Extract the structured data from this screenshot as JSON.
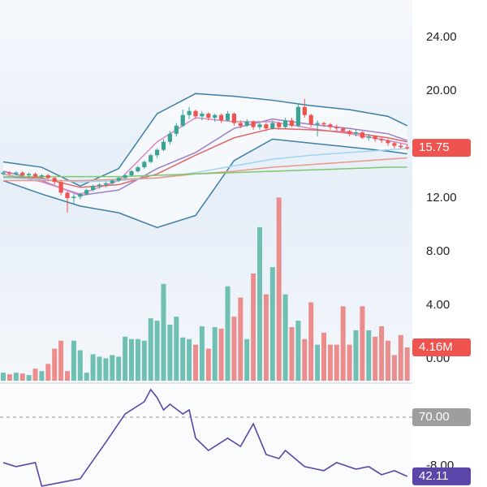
{
  "chart_data": {
    "type": "candlestick",
    "ylim": [
      -9.58,
      26.79
    ],
    "yticks": [
      {
        "value": 24,
        "label": "24.00"
      },
      {
        "value": 20,
        "label": "20.00"
      },
      {
        "value": 12,
        "label": "12.00"
      },
      {
        "value": 8,
        "label": "8.00"
      },
      {
        "value": 4,
        "label": "4.00"
      },
      {
        "value": 0,
        "label": "0.00"
      },
      {
        "value": -8,
        "label": "-8.00"
      }
    ],
    "up_color": "#3aa394",
    "down_color": "#ef5350",
    "candles": [
      [
        13.8,
        14.0,
        13.7,
        13.9
      ],
      [
        13.9,
        14.0,
        13.7,
        13.8
      ],
      [
        13.8,
        14.0,
        13.7,
        13.9
      ],
      [
        13.9,
        14.0,
        13.6,
        13.7
      ],
      [
        13.7,
        13.9,
        13.6,
        13.8
      ],
      [
        13.8,
        13.9,
        13.5,
        13.6
      ],
      [
        13.6,
        13.8,
        13.5,
        13.7
      ],
      [
        13.7,
        13.8,
        13.4,
        13.5
      ],
      [
        13.5,
        13.6,
        13.0,
        13.2
      ],
      [
        13.2,
        13.3,
        12.2,
        12.4
      ],
      [
        12.4,
        12.5,
        10.9,
        12.0
      ],
      [
        12.0,
        12.3,
        11.6,
        12.1
      ],
      [
        12.1,
        12.4,
        11.9,
        12.3
      ],
      [
        12.3,
        12.7,
        12.2,
        12.6
      ],
      [
        12.6,
        13.0,
        12.5,
        12.9
      ],
      [
        12.9,
        13.1,
        12.7,
        13.0
      ],
      [
        13.0,
        13.2,
        12.8,
        13.1
      ],
      [
        13.1,
        13.4,
        13.0,
        13.3
      ],
      [
        13.3,
        13.6,
        13.2,
        13.5
      ],
      [
        13.5,
        13.8,
        13.4,
        13.7
      ],
      [
        13.7,
        14.1,
        13.6,
        14.0
      ],
      [
        14.0,
        14.4,
        13.9,
        14.3
      ],
      [
        14.3,
        14.8,
        14.2,
        14.7
      ],
      [
        14.7,
        15.3,
        14.6,
        15.2
      ],
      [
        15.2,
        15.7,
        15.0,
        15.6
      ],
      [
        15.6,
        16.4,
        15.5,
        16.2
      ],
      [
        16.2,
        17.0,
        16.0,
        16.8
      ],
      [
        16.8,
        17.6,
        16.6,
        17.4
      ],
      [
        17.4,
        18.6,
        17.3,
        18.2
      ],
      [
        18.2,
        18.8,
        17.9,
        18.5
      ],
      [
        18.5,
        18.6,
        17.9,
        18.1
      ],
      [
        18.1,
        18.5,
        17.8,
        18.3
      ],
      [
        18.3,
        18.4,
        17.8,
        18.0
      ],
      [
        18.0,
        18.3,
        17.7,
        18.2
      ],
      [
        18.2,
        18.3,
        17.6,
        17.8
      ],
      [
        17.8,
        18.5,
        17.7,
        18.3
      ],
      [
        18.3,
        18.4,
        17.4,
        17.6
      ],
      [
        17.6,
        17.8,
        17.2,
        17.4
      ],
      [
        17.4,
        17.9,
        17.3,
        17.7
      ],
      [
        17.7,
        17.8,
        17.1,
        17.3
      ],
      [
        17.3,
        17.7,
        17.1,
        17.5
      ],
      [
        17.5,
        17.6,
        17.0,
        17.2
      ],
      [
        17.2,
        17.8,
        17.1,
        17.6
      ],
      [
        17.6,
        17.7,
        17.1,
        17.3
      ],
      [
        17.3,
        18.0,
        17.2,
        17.8
      ],
      [
        17.8,
        18.0,
        17.3,
        17.4
      ],
      [
        17.4,
        19.0,
        17.3,
        18.8
      ],
      [
        18.8,
        19.4,
        18.0,
        18.2
      ],
      [
        18.2,
        18.3,
        17.3,
        17.5
      ],
      [
        17.5,
        17.8,
        16.6,
        17.6
      ],
      [
        17.6,
        17.7,
        17.3,
        17.5
      ],
      [
        17.5,
        17.6,
        17.1,
        17.3
      ],
      [
        17.3,
        17.5,
        17.0,
        17.2
      ],
      [
        17.2,
        17.3,
        16.9,
        17.0
      ],
      [
        17.0,
        17.1,
        16.6,
        16.8
      ],
      [
        16.8,
        17.1,
        16.6,
        16.9
      ],
      [
        16.9,
        17.0,
        16.4,
        16.5
      ],
      [
        16.5,
        16.8,
        16.3,
        16.6
      ],
      [
        16.6,
        16.7,
        16.2,
        16.4
      ],
      [
        16.4,
        16.6,
        16.1,
        16.3
      ],
      [
        16.3,
        16.4,
        15.9,
        16.1
      ],
      [
        16.1,
        16.2,
        15.7,
        15.9
      ],
      [
        15.9,
        16.1,
        15.7,
        15.8
      ],
      [
        15.8,
        16.0,
        15.6,
        15.75
      ]
    ],
    "overlays": [
      {
        "color": "#3d7ea6",
        "x": [
          0,
          6,
          12,
          18,
          24,
          30,
          36,
          42,
          48,
          54,
          60,
          63
        ],
        "values": [
          14.7,
          14.3,
          12.9,
          14.2,
          18.3,
          19.8,
          19.6,
          19.3,
          18.9,
          18.6,
          18.1,
          17.4
        ]
      },
      {
        "color": "#3d7ea6",
        "x": [
          0,
          6,
          12,
          18,
          24,
          30,
          36,
          42,
          48,
          54,
          60,
          63
        ],
        "values": [
          13.3,
          12.3,
          11.4,
          10.9,
          9.8,
          10.7,
          14.8,
          16.4,
          16.1,
          15.8,
          15.5,
          15.3
        ]
      },
      {
        "color": "#9b7fc8",
        "x": [
          0,
          6,
          12,
          18,
          24,
          30,
          36,
          42,
          48,
          54,
          60,
          63
        ],
        "values": [
          14.0,
          13.3,
          12.2,
          12.6,
          14.2,
          15.4,
          17.2,
          17.9,
          17.5,
          17.2,
          16.8,
          16.3
        ]
      },
      {
        "color": "#d98ac4",
        "x": [
          0,
          6,
          12,
          18,
          24,
          30,
          36,
          42,
          48,
          54,
          60,
          63
        ],
        "values": [
          13.8,
          13.2,
          12.3,
          13.3,
          16.2,
          18.0,
          17.7,
          17.7,
          17.2,
          16.8,
          16.3,
          16.0
        ]
      },
      {
        "color": "#e06666",
        "x": [
          0,
          6,
          12,
          18,
          24,
          30,
          36,
          42,
          48,
          54,
          60,
          63
        ],
        "values": [
          13.6,
          13.5,
          12.8,
          13.0,
          13.8,
          15.2,
          16.5,
          17.2,
          17.1,
          16.9,
          16.5,
          16.2
        ]
      },
      {
        "color": "#9fd3ee",
        "x": [
          0,
          6,
          12,
          18,
          24,
          30,
          36,
          42,
          48,
          54,
          60,
          63
        ],
        "values": [
          13.5,
          13.4,
          13.2,
          13.3,
          13.5,
          13.9,
          14.4,
          14.9,
          15.2,
          15.4,
          15.6,
          15.7
        ]
      },
      {
        "color": "#e89a8a",
        "x": [
          0,
          6,
          12,
          18,
          24,
          30,
          36,
          42,
          48,
          54,
          60,
          63
        ],
        "values": [
          13.3,
          13.3,
          13.3,
          13.4,
          13.5,
          13.8,
          14.0,
          14.3,
          14.5,
          14.7,
          14.9,
          15.0
        ]
      },
      {
        "color": "#7cc96b",
        "x": [
          0,
          6,
          12,
          18,
          24,
          30,
          36,
          42,
          48,
          54,
          60,
          63
        ],
        "values": [
          13.6,
          13.6,
          13.6,
          13.6,
          13.7,
          13.8,
          13.9,
          14.0,
          14.1,
          14.2,
          14.3,
          14.3
        ]
      }
    ],
    "volume": {
      "ylim": [
        0,
        47.6
      ],
      "up_color": "#6fbfb2",
      "down_color": "#ec8d8d",
      "values": [
        1.0,
        0.8,
        1.0,
        0.9,
        0.7,
        1.5,
        1.2,
        2.1,
        4.0,
        5.0,
        1.2,
        5.0,
        3.8,
        1.0,
        3.3,
        3.0,
        2.8,
        3.2,
        3.0,
        5.5,
        5.2,
        5.2,
        5.0,
        7.8,
        7.5,
        12.1,
        7.0,
        8.0,
        5.4,
        5.2,
        4.5,
        6.8,
        4.0,
        6.7,
        6.5,
        11.8,
        8.0,
        10.4,
        5.2,
        13.4,
        19.2,
        10.8,
        14.2,
        22.9,
        10.8,
        6.7,
        7.5,
        5.2,
        9.8,
        4.5,
        6.0,
        4.5,
        4.5,
        9.3,
        4.5,
        6.3,
        9.3,
        6.3,
        5.5,
        6.8,
        5.0,
        3.2,
        5.7,
        4.16
      ],
      "value_labels": [
        null,
        null,
        null,
        null,
        null,
        null,
        null,
        null,
        null,
        null,
        null,
        null,
        null,
        null,
        null,
        null,
        null,
        null,
        null,
        null,
        null,
        null,
        null,
        null,
        null,
        null,
        null,
        null,
        null,
        null,
        null,
        null,
        null,
        null,
        null,
        null,
        null,
        null,
        null,
        null,
        null,
        null,
        null,
        null,
        null,
        null,
        null,
        null,
        null,
        null,
        null,
        null,
        null,
        null,
        null,
        null,
        null,
        null,
        null,
        null,
        null,
        null,
        null,
        "4.16M"
      ]
    },
    "rsi": {
      "ylim": [
        37.1,
        84.9
      ],
      "color": "#5b45a8",
      "x": [
        0,
        2,
        5,
        6,
        12,
        16,
        19,
        22,
        23,
        24,
        25,
        26,
        28,
        29,
        30,
        32,
        35,
        37,
        39,
        41,
        43,
        44,
        47,
        50,
        52,
        55,
        57,
        59,
        61,
        63
      ],
      "values": [
        48.6,
        46.7,
        48.6,
        37.5,
        41.0,
        58.2,
        71.5,
        77.3,
        83.0,
        79.2,
        73.4,
        76.1,
        71.5,
        73.4,
        60.1,
        54.3,
        60.1,
        56.2,
        66.9,
        52.4,
        50.5,
        54.3,
        46.7,
        44.8,
        48.6,
        45.5,
        46.7,
        42.9,
        44.8,
        42.11
      ],
      "level": {
        "value": 70,
        "label": "70.00"
      }
    }
  }
}
